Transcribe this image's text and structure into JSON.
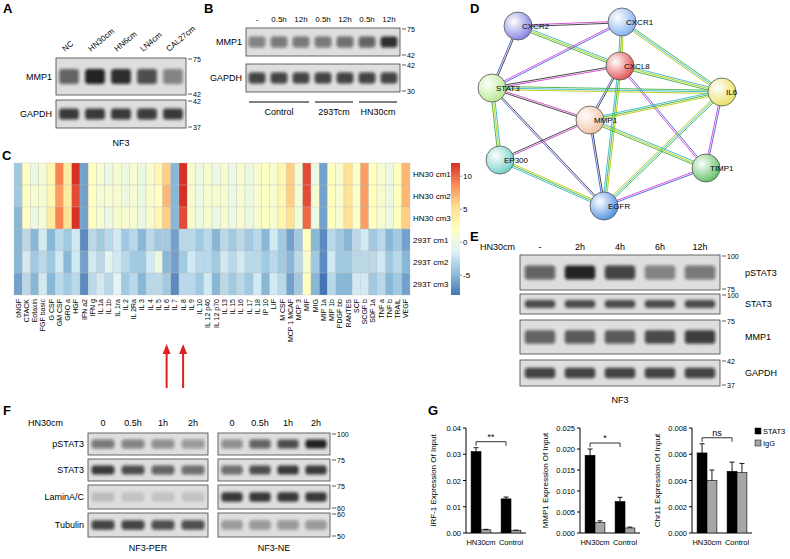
{
  "panel_labels": [
    "A",
    "B",
    "C",
    "D",
    "E",
    "F",
    "G"
  ],
  "blots": [
    {
      "lanes": [
        "NC",
        "HN30cm",
        "HN6cm",
        "LN4cm",
        "CAL27cm"
      ],
      "rows": [
        {
          "name": "MMP1",
          "markers": [
            75,
            42
          ],
          "bands": [
            0.6,
            0.9,
            0.85,
            0.7,
            0.45
          ]
        },
        {
          "name": "GAPDH",
          "markers": [
            42,
            37
          ],
          "bands": [
            0.8,
            0.8,
            0.8,
            0.78,
            0.8
          ]
        }
      ],
      "caption": "NF3"
    },
    {
      "lanes": [
        "-",
        "0.5h",
        "12h",
        "0.5h",
        "12h",
        "0.5h",
        "12h"
      ],
      "rows": [
        {
          "name": "MMP1",
          "markers": [
            75,
            42
          ],
          "bands": [
            0.45,
            0.5,
            0.5,
            0.5,
            0.55,
            0.6,
            0.85
          ]
        },
        {
          "name": "GAPDH",
          "markers": [
            42,
            30
          ],
          "bands": [
            0.75,
            0.75,
            0.75,
            0.75,
            0.75,
            0.75,
            0.75
          ]
        }
      ],
      "groups": [
        {
          "name": "Control",
          "lanes": 3
        },
        {
          "name": "293Tcm",
          "lanes": 2
        },
        {
          "name": "HN30cm",
          "lanes": 2
        }
      ]
    },
    {
      "header": "HN30cm",
      "lanes": [
        "-",
        "2h",
        "4h",
        "6h",
        "12h"
      ],
      "rows": [
        {
          "name": "pSTAT3",
          "markers": [
            100,
            75
          ],
          "bands": [
            0.6,
            0.9,
            0.75,
            0.45,
            0.5
          ]
        },
        {
          "name": "STAT3",
          "markers": [
            100
          ],
          "bands": [
            0.7,
            0.7,
            0.7,
            0.7,
            0.7
          ]
        },
        {
          "name": "MMP1",
          "markers": [
            75
          ],
          "bands": [
            0.6,
            0.65,
            0.65,
            0.72,
            0.78
          ]
        },
        {
          "name": "GAPDH",
          "markers": [
            42,
            37
          ],
          "bands": [
            0.75,
            0.75,
            0.75,
            0.75,
            0.75
          ]
        }
      ],
      "caption": "NF3"
    },
    {
      "header": "HN30cm",
      "rows": [
        {
          "name": "pSTAT3",
          "markers": [
            100
          ]
        },
        {
          "name": "STAT3",
          "markers": [
            75
          ]
        },
        {
          "name": "LaminA/C",
          "markers": [
            75,
            60
          ]
        },
        {
          "name": "Tubulin",
          "markers": [
            60,
            50
          ]
        }
      ],
      "blocks": [
        {
          "name": "NF3-PER",
          "lanes": [
            "0",
            "0.5h",
            "1h",
            "2h"
          ],
          "bands": [
            [
              0.5,
              0.45,
              0.4,
              0.35
            ],
            [
              0.8,
              0.7,
              0.6,
              0.55
            ],
            [
              0.15,
              0.12,
              0.12,
              0.12
            ],
            [
              0.75,
              0.75,
              0.7,
              0.7
            ]
          ]
        },
        {
          "name": "NF3-NE",
          "lanes": [
            "0",
            "0.5h",
            "1h",
            "2h"
          ],
          "bands": [
            [
              0.4,
              0.6,
              0.7,
              0.9
            ],
            [
              0.55,
              0.7,
              0.8,
              0.8
            ],
            [
              0.8,
              0.8,
              0.8,
              0.8
            ],
            [
              0.3,
              0.35,
              0.35,
              0.35
            ]
          ]
        }
      ]
    }
  ],
  "network": {
    "nodes": [
      {
        "name": "CXCR2",
        "color": "#8080e0"
      },
      {
        "name": "CXCR1",
        "color": "#80b0f0"
      },
      {
        "name": "CXCL8",
        "color": "#e05050"
      },
      {
        "name": "STAT3",
        "color": "#b8e890"
      },
      {
        "name": "IL6",
        "color": "#e8e060"
      },
      {
        "name": "MMP1",
        "color": "#f0c0a0"
      },
      {
        "name": "EP300",
        "color": "#70d0c8"
      },
      {
        "name": "TIMP1",
        "color": "#60c060"
      },
      {
        "name": "EGFR",
        "color": "#5090e0"
      }
    ],
    "edges": [
      [
        0,
        1
      ],
      [
        0,
        2
      ],
      [
        0,
        3
      ],
      [
        1,
        2
      ],
      [
        1,
        3
      ],
      [
        1,
        4
      ],
      [
        2,
        3
      ],
      [
        2,
        4
      ],
      [
        2,
        5
      ],
      [
        2,
        8
      ],
      [
        2,
        7
      ],
      [
        3,
        4
      ],
      [
        3,
        5
      ],
      [
        3,
        6
      ],
      [
        3,
        8
      ],
      [
        4,
        5
      ],
      [
        4,
        7
      ],
      [
        4,
        8
      ],
      [
        5,
        6
      ],
      [
        5,
        7
      ],
      [
        5,
        8
      ],
      [
        6,
        8
      ],
      [
        7,
        8
      ]
    ]
  },
  "chart_data": [
    {
      "type": "heatmap",
      "categories": [
        "bNGF",
        "CTACK",
        "Eotaxin",
        "FGF basic",
        "G CSF",
        "GM CSF",
        "GRO a",
        "HGF",
        "IFN a2",
        "IFN g",
        "IL 1a",
        "IL 1b",
        "IL 1ra",
        "IL 2",
        "IL 2Ra",
        "IL 3",
        "IL 4",
        "IL 5",
        "IL 6",
        "IL 7",
        "IL 8",
        "IL 9",
        "IL 10",
        "IL 12 p40",
        "IL 12 p70",
        "IL 13",
        "IL 15",
        "IL 16",
        "IL 17",
        "IL 18",
        "IP 10",
        "LIF",
        "M CSF",
        "MCP 1 MCAF",
        "MCP 3",
        "MIF",
        "MIG",
        "MIP 1a",
        "MIP 1b",
        "PDGF bb",
        "RANTES",
        "SCF",
        "SCGF b",
        "SDF 1a",
        "TNF a",
        "TNF b",
        "TRAIL",
        "VEGF"
      ],
      "y_categories": [
        "HN30 cm1",
        "HN30 cm2",
        "HN30 cm3",
        "293T cm1",
        "293T cm2",
        "293T cm3"
      ],
      "cells": [
        [
          -4,
          2,
          0,
          1,
          3,
          9,
          4,
          12,
          -6,
          2,
          1,
          0,
          1,
          0,
          1,
          0,
          1,
          3,
          6,
          -5,
          12,
          1,
          0,
          1,
          0,
          1,
          0,
          1,
          0,
          1,
          2,
          1,
          3,
          6,
          1,
          11,
          0,
          -6,
          2,
          1,
          5,
          2,
          8,
          2,
          1,
          0,
          2,
          7
        ],
        [
          -4,
          2,
          1,
          1,
          3,
          8,
          4,
          11,
          -6,
          2,
          1,
          1,
          1,
          0,
          1,
          0,
          1,
          2,
          7,
          -5,
          12,
          1,
          0,
          1,
          1,
          1,
          0,
          1,
          0,
          1,
          2,
          1,
          3,
          6,
          1,
          11,
          1,
          -6,
          2,
          1,
          5,
          2,
          8,
          2,
          1,
          0,
          2,
          7
        ],
        [
          -5,
          2,
          0,
          1,
          4,
          9,
          5,
          12,
          -6,
          2,
          1,
          0,
          1,
          1,
          1,
          0,
          1,
          3,
          6,
          -5,
          11,
          1,
          0,
          1,
          0,
          1,
          0,
          1,
          0,
          1,
          2,
          1,
          3,
          5,
          1,
          10,
          0,
          -6,
          2,
          1,
          5,
          2,
          8,
          2,
          1,
          0,
          2,
          6
        ],
        [
          -5,
          -3,
          -5,
          -2,
          -5,
          -3,
          -4,
          -2,
          -7,
          -3,
          -4,
          -3,
          -2,
          -4,
          -3,
          -5,
          -3,
          -4,
          -4,
          -6,
          -3,
          -3,
          -4,
          -3,
          -5,
          -3,
          -4,
          -3,
          -4,
          -3,
          -5,
          -2,
          -4,
          -6,
          -4,
          2,
          -5,
          -7,
          -3,
          -4,
          -5,
          -3,
          -2,
          -4,
          -3,
          -5,
          -4,
          -6
        ],
        [
          -5,
          -2,
          -4,
          -3,
          -4,
          -2,
          -5,
          -2,
          -6,
          -2,
          -3,
          -1,
          -2,
          -3,
          -4,
          -4,
          -2,
          0,
          -5,
          -6,
          -4,
          -2,
          -3,
          -3,
          -4,
          -2,
          -3,
          -2,
          -3,
          -3,
          -4,
          -3,
          -4,
          -5,
          -3,
          1,
          -4,
          -7,
          -2,
          -4,
          -4,
          -3,
          -3,
          -3,
          -2,
          -4,
          -3,
          -5
        ],
        [
          -6,
          -3,
          -5,
          -2,
          -5,
          -3,
          -4,
          -3,
          -7,
          -3,
          -2,
          -3,
          -1,
          -4,
          -3,
          -5,
          -3,
          -3,
          -4,
          -7,
          -3,
          -3,
          -4,
          -2,
          -5,
          -3,
          -4,
          -3,
          -4,
          -2,
          -5,
          -2,
          -3,
          -6,
          -4,
          2,
          -5,
          -8,
          -3,
          -5,
          -5,
          -2,
          -2,
          -4,
          -3,
          -5,
          -4,
          -6
        ]
      ],
      "color_range": [
        -8,
        12
      ],
      "color_ticks": [
        10,
        5,
        0,
        -5
      ]
    },
    {
      "type": "bar",
      "y_label": "IRF-1 Expression Of Input",
      "categories": [
        "HN30cm",
        "Control"
      ],
      "series": [
        {
          "color": "#000000",
          "values": [
            0.031,
            0.013
          ],
          "errors": [
            0.0015,
            0.0007
          ]
        },
        {
          "color": "#a6a6a6",
          "values": [
            0.0012,
            0.0009
          ],
          "errors": [
            0.0002,
            0.0002
          ]
        }
      ],
      "ylim": [
        0,
        0.04
      ],
      "yticks": [
        {
          "value": 0,
          "label": "0.00"
        },
        0.01,
        0.02,
        0.03,
        0.04
      ],
      "annotation": "**"
    },
    {
      "type": "bar",
      "y_label": "MMP1 Expression Of Input",
      "categories": [
        "HN30cm",
        "Control"
      ],
      "series": [
        {
          "color": "#000000",
          "values": [
            0.0185,
            0.0075
          ],
          "errors": [
            0.0015,
            0.001
          ]
        },
        {
          "color": "#a6a6a6",
          "values": [
            0.0025,
            0.0012
          ],
          "errors": [
            0.0004,
            0.0002
          ]
        }
      ],
      "ylim": [
        0,
        0.025
      ],
      "yticks": [
        {
          "value": 0,
          "label": "0.000"
        },
        0.005,
        {
          "value": 0.01,
          "label": "0.010"
        },
        0.015,
        {
          "value": 0.02,
          "label": "0.020"
        },
        0.025
      ],
      "annotation": "*"
    },
    {
      "type": "bar",
      "y_label": "Chr11 Expression Of Input",
      "categories": [
        "HN30cm",
        "Control"
      ],
      "series": [
        {
          "name": "STAT3",
          "color": "#000000",
          "values": [
            0.0061,
            0.0047
          ],
          "errors": [
            0.0007,
            0.0007
          ]
        },
        {
          "name": "IgG",
          "color": "#a6a6a6",
          "values": [
            0.004,
            0.0046
          ],
          "errors": [
            0.0008,
            0.0007
          ]
        }
      ],
      "ylim": [
        0,
        0.008
      ],
      "yticks": [
        {
          "value": 0,
          "label": "0.000"
        },
        0.002,
        0.004,
        0.006,
        0.008
      ],
      "annotation": "ns",
      "legend": "right"
    }
  ]
}
